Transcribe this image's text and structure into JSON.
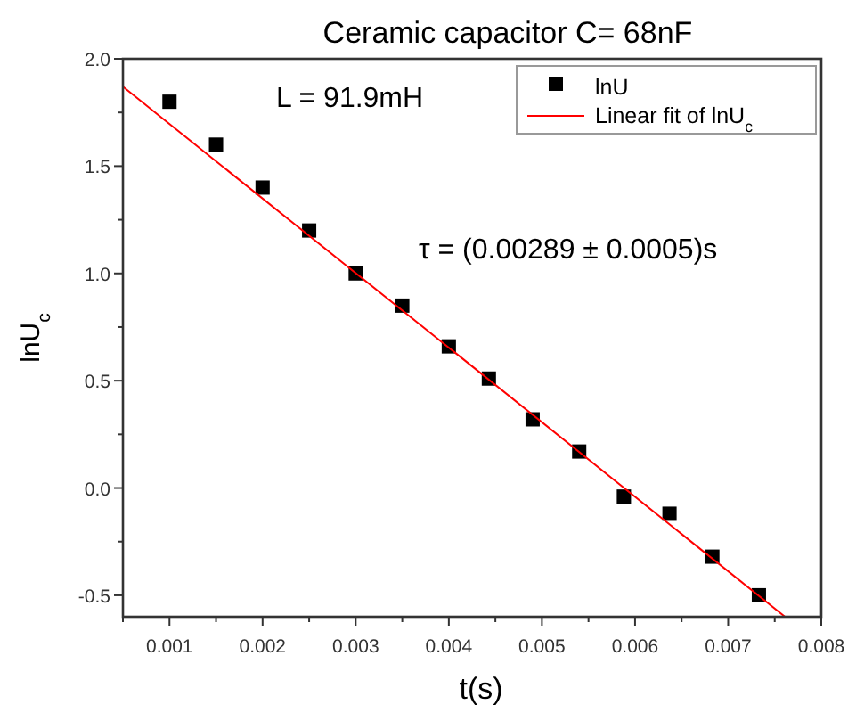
{
  "chart_data": {
    "type": "scatter",
    "title": "Ceramic capacitor  C= 68nF",
    "xlabel": "t(s)",
    "ylabel": "lnU$_{c}$",
    "annotations": [
      "L = 91.9mH",
      "τ = (0.00289 ± 0.0005)s"
    ],
    "xlim": [
      0.0005,
      0.008
    ],
    "ylim": [
      -0.6,
      2.0
    ],
    "xticks": [
      {
        "value": 0.0005,
        "label": null
      },
      0.001,
      {
        "value": 0.0015,
        "label": null
      },
      0.002,
      {
        "value": 0.0025,
        "label": null
      },
      0.003,
      {
        "value": 0.0035,
        "label": null
      },
      0.004,
      {
        "value": 0.0045,
        "label": null
      },
      0.005,
      {
        "value": 0.0055,
        "label": null
      },
      0.006,
      {
        "value": 0.0065,
        "label": null
      },
      0.007,
      {
        "value": 0.0075,
        "label": null
      },
      0.008
    ],
    "yticks": [
      {
        "value": -0.5,
        "label": "-0.5"
      },
      {
        "value": -0.25,
        "label": null
      },
      {
        "value": 0,
        "label": "0.0"
      },
      {
        "value": 0.25,
        "label": null
      },
      {
        "value": 0.5,
        "label": "0.5"
      },
      {
        "value": 0.75,
        "label": null
      },
      {
        "value": 1,
        "label": "1.0"
      },
      {
        "value": 1.25,
        "label": null
      },
      {
        "value": 1.5,
        "label": "1.5"
      },
      {
        "value": 1.75,
        "label": null
      },
      {
        "value": 2,
        "label": "2.0"
      }
    ],
    "grid": false,
    "legend": "top right",
    "series": [
      {
        "name": "lnU",
        "color": "#000000",
        "marker": "square",
        "x": [
          0.001,
          0.0015,
          0.002,
          0.0025,
          0.003,
          0.0035,
          0.004,
          0.00443,
          0.0049,
          0.0054,
          0.00588,
          0.00637,
          0.00683,
          0.00733
        ],
        "values": [
          1.8,
          1.6,
          1.4,
          1.2,
          1.0,
          0.85,
          0.66,
          0.51,
          0.32,
          0.17,
          -0.04,
          -0.12,
          -0.32,
          -0.5
        ]
      },
      {
        "name": "Linear fit of lnU$_{c}$",
        "type": "line",
        "color": "#ff0000",
        "line_style": "solid",
        "marker": "none",
        "x": [
          0.0005,
          0.00761
        ],
        "values": [
          1.87,
          -0.6
        ]
      }
    ]
  }
}
